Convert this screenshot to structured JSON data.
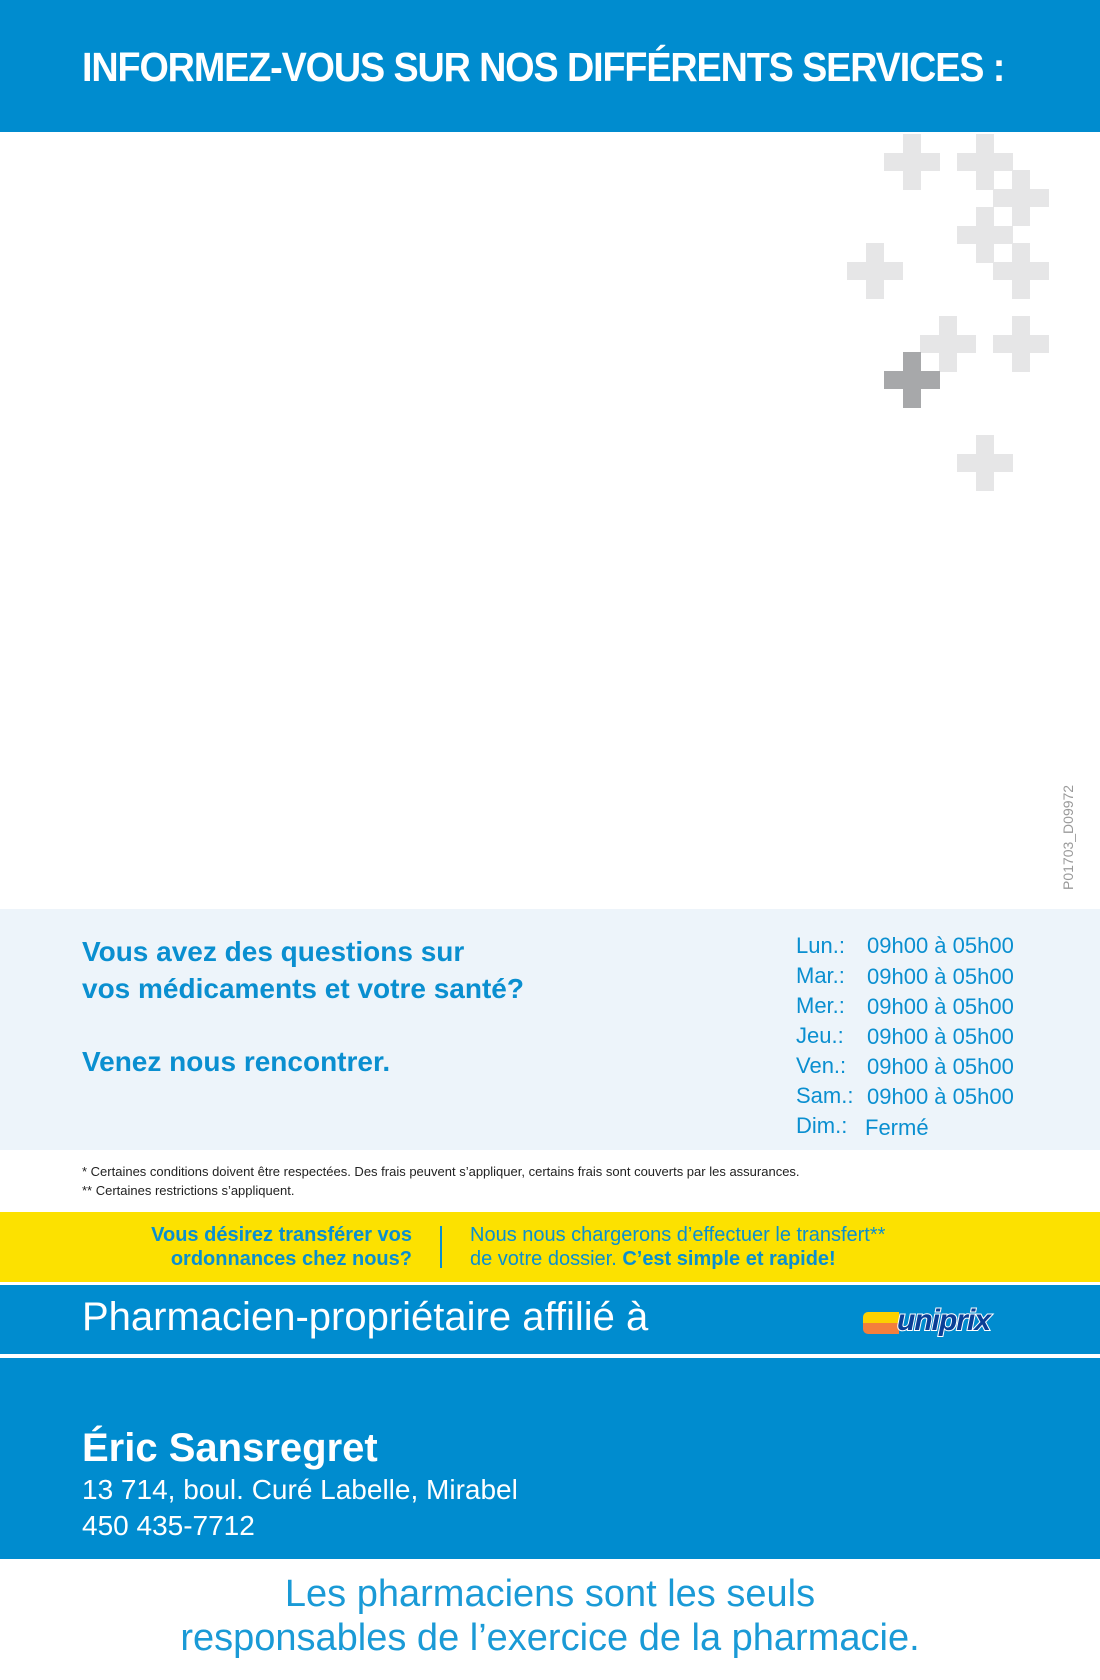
{
  "header": {
    "title": "INFORMEZ-VOUS SUR NOS DIFFÉRENTS SERVICES :"
  },
  "colors": {
    "brand_blue": "#008ccf",
    "light_panel": "#edf4fa",
    "yellow": "#fce100",
    "cross_gray": "#e6e6e7",
    "cross_dark": "#a7a8aa"
  },
  "document_code": "P01703_D09972",
  "info": {
    "question_line1": "Vous avez des questions sur",
    "question_line2": "vos médicaments et votre santé?",
    "invite": "Venez nous rencontrer.",
    "hours": [
      {
        "day": "Lun.:",
        "hours": "09h00 à 05h00"
      },
      {
        "day": "Mar.:",
        "hours": "09h00 à 05h00"
      },
      {
        "day": "Mer.:",
        "hours": "09h00 à 05h00"
      },
      {
        "day": "Jeu.:",
        "hours": "09h00 à 05h00"
      },
      {
        "day": "Ven.:",
        "hours": "09h00 à 05h00"
      },
      {
        "day": "Sam.:",
        "hours": "09h00 à 05h00"
      },
      {
        "day": "Dim.:",
        "hours": "Fermé"
      }
    ]
  },
  "footnotes": [
    "* Certaines conditions doivent être respectées. Des frais peuvent s’appliquer, certains frais sont couverts par les assurances.",
    "** Certaines restrictions s’appliquent."
  ],
  "transfer": {
    "question_line1": "Vous désirez transférer vos",
    "question_line2": "ordonnances chez nous?",
    "answer_line1": "Nous nous chargerons d’effectuer le transfert**",
    "answer_line2": "de votre dossier.",
    "answer_bold": "C’est simple et rapide!"
  },
  "affiliation": {
    "label": "Pharmacien-propriétaire affilié à",
    "logo_text": "uniprix"
  },
  "owner": {
    "name": "Éric Sansregret",
    "address": "13 714, boul. Curé Labelle, Mirabel",
    "phone": "450 435-7712"
  },
  "slogan": {
    "line1": "Les pharmaciens sont les seuls",
    "line2": "responsables de l’exercice de la pharmacie."
  }
}
